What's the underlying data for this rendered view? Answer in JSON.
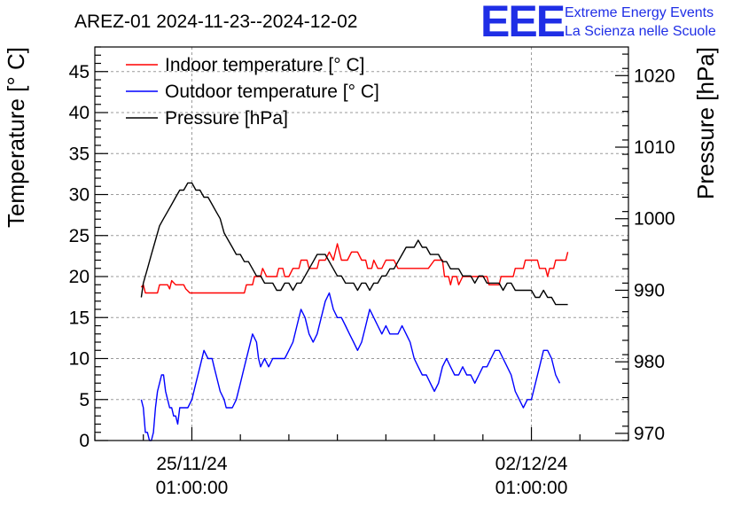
{
  "chart_data": {
    "type": "line",
    "title": "AREZ-01 2024-11-23--2024-12-02",
    "logo": {
      "mark": "EEE",
      "line1": "Extreme Energy Events",
      "line2": "La Scienza nelle Scuole",
      "color": "#1f2ee6"
    },
    "ylabel": "Temperature [° C]",
    "ylabel_right": "Pressure [hPa]",
    "ylim": [
      0,
      48
    ],
    "ylim_right": [
      969,
      1024
    ],
    "x_range_hours": [
      -48,
      216
    ],
    "yticks": [
      0,
      5,
      10,
      15,
      20,
      25,
      30,
      35,
      40,
      45
    ],
    "yticks_right": [
      970,
      980,
      990,
      1000,
      1010,
      1020
    ],
    "xticks": [
      {
        "hour": 0,
        "line1": "25/11/24",
        "line2": "01:00:00"
      },
      {
        "hour": 168,
        "line1": "02/12/24",
        "line2": "01:00:00"
      }
    ],
    "grid": true,
    "legend_position": "top-left",
    "series": [
      {
        "name": "Indoor temperature [° C]",
        "axis": "left",
        "color": "#ff0000",
        "points": [
          [
            -25,
            18.7
          ],
          [
            -24,
            19
          ],
          [
            -23,
            18
          ],
          [
            -17,
            18
          ],
          [
            -16,
            19
          ],
          [
            -12,
            19
          ],
          [
            -11,
            18.5
          ],
          [
            -10,
            19.5
          ],
          [
            -8,
            19
          ],
          [
            -4,
            19
          ],
          [
            -3,
            18.5
          ],
          [
            -1,
            18
          ],
          [
            -1,
            18
          ],
          [
            26,
            18
          ],
          [
            27,
            19
          ],
          [
            30,
            19
          ],
          [
            31,
            20
          ],
          [
            34,
            20
          ],
          [
            35,
            21
          ],
          [
            37,
            20
          ],
          [
            42,
            20
          ],
          [
            43,
            21
          ],
          [
            45,
            21
          ],
          [
            46,
            20
          ],
          [
            48,
            20
          ],
          [
            50,
            21
          ],
          [
            53,
            21
          ],
          [
            54,
            22
          ],
          [
            57,
            22
          ],
          [
            58,
            21
          ],
          [
            62,
            21
          ],
          [
            63,
            22
          ],
          [
            66,
            22
          ],
          [
            68,
            23
          ],
          [
            70,
            22
          ],
          [
            72,
            24
          ],
          [
            74,
            22
          ],
          [
            77,
            22
          ],
          [
            79,
            23
          ],
          [
            82,
            23
          ],
          [
            84,
            22
          ],
          [
            86,
            22
          ],
          [
            87,
            21
          ],
          [
            89,
            21
          ],
          [
            90,
            22
          ],
          [
            92,
            21
          ],
          [
            94,
            21
          ],
          [
            96,
            22
          ],
          [
            100,
            22
          ],
          [
            102,
            21
          ],
          [
            108,
            21
          ],
          [
            117,
            21
          ],
          [
            120,
            22
          ],
          [
            124,
            22
          ],
          [
            125,
            20
          ],
          [
            127,
            20
          ],
          [
            128,
            19
          ],
          [
            129,
            20
          ],
          [
            131,
            20
          ],
          [
            132,
            19
          ],
          [
            134,
            20
          ],
          [
            146,
            20
          ],
          [
            147,
            19
          ],
          [
            152,
            19
          ],
          [
            153,
            20
          ],
          [
            159,
            20
          ],
          [
            160,
            21
          ],
          [
            164,
            21
          ],
          [
            165,
            22
          ],
          [
            171,
            22
          ],
          [
            172,
            21
          ],
          [
            175,
            21
          ],
          [
            176,
            20
          ],
          [
            177,
            21
          ],
          [
            179,
            21
          ],
          [
            180,
            22
          ],
          [
            185,
            22
          ],
          [
            186,
            23
          ]
        ]
      },
      {
        "name": "Outdoor temperature [° C]",
        "axis": "left",
        "color": "#0000ff",
        "points": [
          [
            -25,
            5
          ],
          [
            -24,
            4
          ],
          [
            -23,
            1
          ],
          [
            -22,
            1
          ],
          [
            -21,
            0
          ],
          [
            -20,
            0
          ],
          [
            -19,
            1
          ],
          [
            -18,
            4
          ],
          [
            -17,
            6
          ],
          [
            -16,
            7
          ],
          [
            -15,
            8
          ],
          [
            -14,
            8
          ],
          [
            -13,
            6
          ],
          [
            -12,
            5
          ],
          [
            -11,
            4
          ],
          [
            -10,
            4
          ],
          [
            -9,
            3
          ],
          [
            -8,
            3
          ],
          [
            -7,
            2
          ],
          [
            -6,
            4
          ],
          [
            -4,
            4
          ],
          [
            -2,
            4
          ],
          [
            0,
            5
          ],
          [
            2,
            7
          ],
          [
            4,
            9
          ],
          [
            6,
            11
          ],
          [
            8,
            10
          ],
          [
            10,
            10
          ],
          [
            11,
            9
          ],
          [
            12,
            8
          ],
          [
            14,
            6
          ],
          [
            16,
            5
          ],
          [
            17,
            4
          ],
          [
            20,
            4
          ],
          [
            22,
            5
          ],
          [
            24,
            7
          ],
          [
            26,
            9
          ],
          [
            28,
            11
          ],
          [
            30,
            13
          ],
          [
            32,
            12
          ],
          [
            33,
            10
          ],
          [
            34,
            9
          ],
          [
            36,
            10
          ],
          [
            38,
            9
          ],
          [
            40,
            10
          ],
          [
            42,
            10
          ],
          [
            44,
            10
          ],
          [
            46,
            10
          ],
          [
            48,
            11
          ],
          [
            50,
            12
          ],
          [
            52,
            14
          ],
          [
            54,
            16
          ],
          [
            56,
            15
          ],
          [
            58,
            13
          ],
          [
            60,
            12
          ],
          [
            62,
            13
          ],
          [
            64,
            15
          ],
          [
            66,
            17
          ],
          [
            68,
            18
          ],
          [
            70,
            16
          ],
          [
            72,
            15
          ],
          [
            74,
            15
          ],
          [
            76,
            14
          ],
          [
            78,
            13
          ],
          [
            80,
            12
          ],
          [
            82,
            11
          ],
          [
            84,
            12
          ],
          [
            86,
            14
          ],
          [
            88,
            16
          ],
          [
            90,
            15
          ],
          [
            92,
            14
          ],
          [
            94,
            13
          ],
          [
            96,
            14
          ],
          [
            98,
            13
          ],
          [
            100,
            13
          ],
          [
            102,
            13
          ],
          [
            104,
            14
          ],
          [
            106,
            13
          ],
          [
            108,
            12
          ],
          [
            110,
            10
          ],
          [
            112,
            9
          ],
          [
            114,
            8
          ],
          [
            116,
            8
          ],
          [
            118,
            7
          ],
          [
            120,
            6
          ],
          [
            122,
            7
          ],
          [
            124,
            9
          ],
          [
            126,
            10
          ],
          [
            128,
            9
          ],
          [
            130,
            8
          ],
          [
            132,
            8
          ],
          [
            134,
            9
          ],
          [
            136,
            8
          ],
          [
            138,
            8
          ],
          [
            140,
            7
          ],
          [
            142,
            8
          ],
          [
            144,
            9
          ],
          [
            146,
            9
          ],
          [
            148,
            10
          ],
          [
            150,
            11
          ],
          [
            152,
            11
          ],
          [
            154,
            10
          ],
          [
            156,
            9
          ],
          [
            158,
            8
          ],
          [
            160,
            6
          ],
          [
            162,
            5
          ],
          [
            164,
            4
          ],
          [
            166,
            5
          ],
          [
            168,
            5
          ],
          [
            170,
            7
          ],
          [
            172,
            9
          ],
          [
            174,
            11
          ],
          [
            176,
            11
          ],
          [
            178,
            10
          ],
          [
            180,
            8
          ],
          [
            182,
            7
          ]
        ]
      },
      {
        "name": "Pressure [hPa]",
        "axis": "right",
        "color": "#000000",
        "points": [
          [
            -25,
            989
          ],
          [
            -24,
            991
          ],
          [
            -22,
            993
          ],
          [
            -20,
            995
          ],
          [
            -18,
            997
          ],
          [
            -16,
            999
          ],
          [
            -14,
            1000
          ],
          [
            -12,
            1001
          ],
          [
            -10,
            1002
          ],
          [
            -8,
            1003
          ],
          [
            -6,
            1004
          ],
          [
            -4,
            1004
          ],
          [
            -2,
            1005
          ],
          [
            0,
            1005
          ],
          [
            2,
            1004
          ],
          [
            4,
            1004
          ],
          [
            6,
            1003
          ],
          [
            8,
            1003
          ],
          [
            10,
            1002
          ],
          [
            12,
            1001
          ],
          [
            14,
            1000
          ],
          [
            16,
            998
          ],
          [
            18,
            997
          ],
          [
            20,
            996
          ],
          [
            22,
            995
          ],
          [
            24,
            995
          ],
          [
            26,
            994
          ],
          [
            28,
            994
          ],
          [
            30,
            993
          ],
          [
            32,
            992
          ],
          [
            34,
            992
          ],
          [
            36,
            991
          ],
          [
            38,
            991
          ],
          [
            40,
            991
          ],
          [
            42,
            990
          ],
          [
            44,
            990
          ],
          [
            46,
            991
          ],
          [
            48,
            991
          ],
          [
            50,
            990
          ],
          [
            52,
            991
          ],
          [
            54,
            991
          ],
          [
            56,
            992
          ],
          [
            58,
            993
          ],
          [
            60,
            994
          ],
          [
            62,
            995
          ],
          [
            64,
            995
          ],
          [
            66,
            995
          ],
          [
            68,
            994
          ],
          [
            70,
            993
          ],
          [
            72,
            992
          ],
          [
            74,
            992
          ],
          [
            76,
            991
          ],
          [
            78,
            991
          ],
          [
            80,
            991
          ],
          [
            82,
            990
          ],
          [
            84,
            991
          ],
          [
            86,
            991
          ],
          [
            88,
            990
          ],
          [
            90,
            991
          ],
          [
            92,
            991
          ],
          [
            94,
            992
          ],
          [
            96,
            992
          ],
          [
            98,
            993
          ],
          [
            100,
            993
          ],
          [
            102,
            994
          ],
          [
            104,
            995
          ],
          [
            106,
            996
          ],
          [
            108,
            996
          ],
          [
            110,
            996
          ],
          [
            112,
            997
          ],
          [
            114,
            996
          ],
          [
            116,
            996
          ],
          [
            118,
            995
          ],
          [
            120,
            995
          ],
          [
            122,
            995
          ],
          [
            124,
            994
          ],
          [
            126,
            994
          ],
          [
            128,
            993
          ],
          [
            130,
            993
          ],
          [
            132,
            993
          ],
          [
            134,
            992
          ],
          [
            136,
            992
          ],
          [
            138,
            992
          ],
          [
            140,
            991
          ],
          [
            142,
            992
          ],
          [
            144,
            992
          ],
          [
            146,
            991
          ],
          [
            148,
            991
          ],
          [
            150,
            991
          ],
          [
            152,
            991
          ],
          [
            154,
            990
          ],
          [
            156,
            991
          ],
          [
            158,
            991
          ],
          [
            160,
            990
          ],
          [
            162,
            990
          ],
          [
            164,
            990
          ],
          [
            166,
            990
          ],
          [
            168,
            990
          ],
          [
            170,
            989
          ],
          [
            172,
            989
          ],
          [
            174,
            990
          ],
          [
            176,
            989
          ],
          [
            178,
            989
          ],
          [
            180,
            988
          ],
          [
            182,
            988
          ],
          [
            184,
            988
          ],
          [
            186,
            988
          ]
        ]
      }
    ]
  }
}
